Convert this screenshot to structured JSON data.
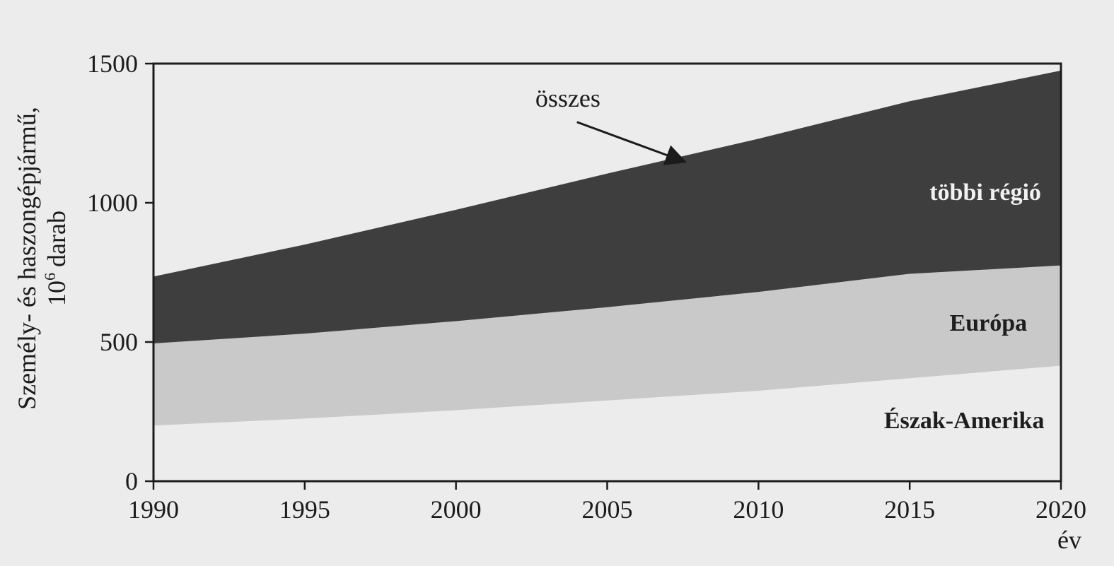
{
  "chart_data": {
    "type": "area",
    "stacked": true,
    "title": "",
    "ylabel": "Személy- és haszongépjármű,",
    "ylabel_line2_base": "10",
    "ylabel_line2_exp": "6",
    "ylabel_line2_rest": "darab",
    "xlabel": "év",
    "xlim": [
      1990,
      2020
    ],
    "ylim": [
      0,
      1500
    ],
    "grid": false,
    "legend": "inline labels",
    "x_ticks": [
      1990,
      1995,
      2000,
      2005,
      2010,
      2015,
      2020
    ],
    "y_ticks": [
      0,
      500,
      1000,
      1500
    ],
    "x": [
      1990,
      1995,
      2000,
      2005,
      2010,
      2015,
      2020
    ],
    "series": [
      {
        "name": "Észak-Amerika",
        "values": [
          200,
          225,
          255,
          290,
          325,
          370,
          415
        ],
        "color": "#ececec",
        "label_color": "#1e1e1e"
      },
      {
        "name": "Európa",
        "values": [
          295,
          305,
          320,
          335,
          355,
          375,
          360
        ],
        "color": "#c9c9c9",
        "label_color": "#1e1e1e"
      },
      {
        "name": "többi régió",
        "values": [
          240,
          320,
          400,
          480,
          550,
          620,
          700
        ],
        "color": "#3e3e3e",
        "label_color": "#f2f2f2"
      }
    ],
    "annotation": {
      "text": "összes"
    }
  }
}
